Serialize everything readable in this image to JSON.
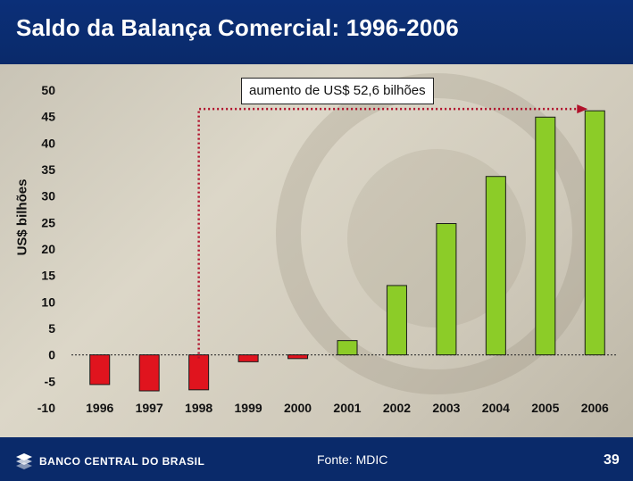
{
  "slide": {
    "title": "Saldo da Balança Comercial: 1996-2006",
    "source": "Fonte: MDIC",
    "page_number": "39",
    "logo_text": "BANCO CENTRAL DO BRASIL"
  },
  "annotation": {
    "text": "aumento de US$ 52,6 bilhões"
  },
  "chart_data": {
    "type": "bar",
    "ylabel": "US$ bilhões",
    "xlabel": "",
    "ylim": [
      -10,
      50
    ],
    "yticks": [
      "50",
      "45",
      "40",
      "35",
      "30",
      "25",
      "20",
      "15",
      "10",
      "5",
      "0",
      "-5",
      "-10"
    ],
    "ytick_values": [
      50,
      45,
      40,
      35,
      30,
      25,
      20,
      15,
      10,
      5,
      0,
      -5,
      -10
    ],
    "categories": [
      "1996",
      "1997",
      "1998",
      "1999",
      "2000",
      "2001",
      "2002",
      "2003",
      "2004",
      "2005",
      "2006"
    ],
    "values": [
      -5.6,
      -6.8,
      -6.6,
      -1.3,
      -0.7,
      2.7,
      13.1,
      24.8,
      33.7,
      44.9,
      46.1
    ],
    "colors": {
      "negative": "#e0141e",
      "positive": "#8ccc28",
      "annotation_line": "#b0102a"
    }
  }
}
